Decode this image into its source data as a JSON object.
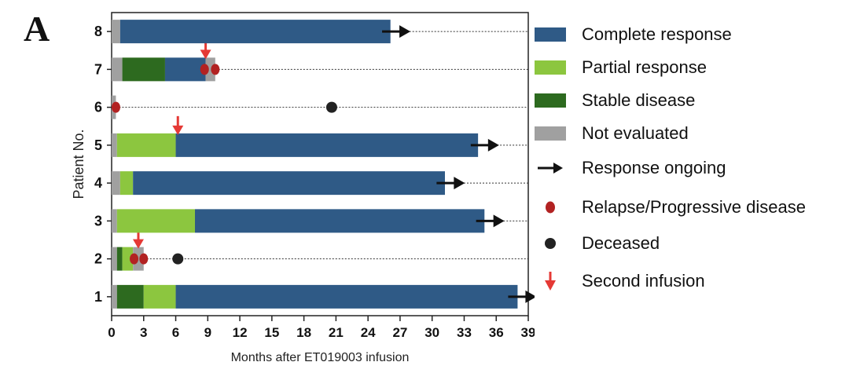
{
  "panel_label": "A",
  "colors": {
    "complete": "#2f5a86",
    "partial": "#8cc63f",
    "stable": "#2d6a1f",
    "not_evaluated": "#a0a0a0",
    "relapse": "#b22222",
    "deceased": "#222222",
    "arrow": "#111111",
    "infusion": "#e53935"
  },
  "legend": [
    {
      "key": "complete",
      "label": "Complete response",
      "kind": "swatch",
      "icon": "complete-swatch"
    },
    {
      "key": "partial",
      "label": "Partial response",
      "kind": "swatch",
      "icon": "partial-swatch"
    },
    {
      "key": "stable",
      "label": "Stable disease",
      "kind": "swatch",
      "icon": "stable-swatch"
    },
    {
      "key": "not_evaluated",
      "label": "Not evaluated",
      "kind": "swatch",
      "icon": "not-evaluated-swatch"
    },
    {
      "key": "arrow",
      "label": "Response ongoing",
      "kind": "arrow",
      "icon": "right-arrow-icon"
    },
    {
      "key": "relapse",
      "label": "Relapse/Progressive disease",
      "kind": "dot-red",
      "icon": "red-dot-icon"
    },
    {
      "key": "deceased",
      "label": "Deceased",
      "kind": "dot-black",
      "icon": "black-dot-icon"
    },
    {
      "key": "infusion",
      "label": "Second infusion",
      "kind": "down-arrow",
      "icon": "down-arrow-icon"
    }
  ],
  "chart_data": {
    "type": "bar",
    "orientation": "horizontal",
    "xlabel": "Months after ET019003 infusion",
    "ylabel": "Patient No.",
    "xlim": [
      0,
      39
    ],
    "xticks": [
      0,
      3,
      6,
      9,
      12,
      15,
      18,
      21,
      24,
      27,
      30,
      33,
      36,
      39
    ],
    "patients": [
      {
        "id": "1",
        "segments": [
          {
            "status": "not_evaluated",
            "start": 0,
            "end": 0.5
          },
          {
            "status": "stable",
            "start": 0.5,
            "end": 3
          },
          {
            "status": "partial",
            "start": 3,
            "end": 6
          },
          {
            "status": "complete",
            "start": 6,
            "end": 38
          }
        ],
        "ongoing_arrow": 38,
        "relapse": [],
        "deceased": null,
        "second_infusion": null,
        "dashed_to": 38
      },
      {
        "id": "2",
        "segments": [
          {
            "status": "not_evaluated",
            "start": 0,
            "end": 0.5
          },
          {
            "status": "stable",
            "start": 0.5,
            "end": 1
          },
          {
            "status": "partial",
            "start": 1,
            "end": 2
          },
          {
            "status": "not_evaluated",
            "start": 2,
            "end": 3
          }
        ],
        "ongoing_arrow": null,
        "relapse": [
          2.1,
          3.0
        ],
        "deceased": 6.2,
        "second_infusion": 2.5,
        "dashed_to": 39
      },
      {
        "id": "3",
        "segments": [
          {
            "status": "not_evaluated",
            "start": 0,
            "end": 0.5
          },
          {
            "status": "partial",
            "start": 0.5,
            "end": 7.8
          },
          {
            "status": "complete",
            "start": 7.8,
            "end": 34.9
          }
        ],
        "ongoing_arrow": 35,
        "relapse": [],
        "deceased": null,
        "second_infusion": null,
        "dashed_to": 39
      },
      {
        "id": "4",
        "segments": [
          {
            "status": "not_evaluated",
            "start": 0,
            "end": 0.8
          },
          {
            "status": "partial",
            "start": 0.8,
            "end": 2
          },
          {
            "status": "complete",
            "start": 2,
            "end": 31.2
          }
        ],
        "ongoing_arrow": 31.3,
        "relapse": [],
        "deceased": null,
        "second_infusion": null,
        "dashed_to": 39
      },
      {
        "id": "5",
        "segments": [
          {
            "status": "not_evaluated",
            "start": 0,
            "end": 0.5
          },
          {
            "status": "partial",
            "start": 0.5,
            "end": 6
          },
          {
            "status": "complete",
            "start": 6,
            "end": 34.3
          }
        ],
        "ongoing_arrow": 34.5,
        "relapse": [],
        "deceased": null,
        "second_infusion": 6.2,
        "dashed_to": 39
      },
      {
        "id": "6",
        "segments": [
          {
            "status": "not_evaluated",
            "start": 0,
            "end": 0.4
          }
        ],
        "ongoing_arrow": null,
        "relapse": [
          0.4
        ],
        "deceased": 20.6,
        "second_infusion": null,
        "dashed_to": 39
      },
      {
        "id": "7",
        "segments": [
          {
            "status": "not_evaluated",
            "start": 0,
            "end": 1
          },
          {
            "status": "stable",
            "start": 1,
            "end": 5
          },
          {
            "status": "complete",
            "start": 5,
            "end": 8.8
          },
          {
            "status": "not_evaluated",
            "start": 8.8,
            "end": 9.7
          }
        ],
        "ongoing_arrow": null,
        "relapse": [
          8.7,
          9.7
        ],
        "deceased": null,
        "second_infusion": 8.8,
        "dashed_to": 39
      },
      {
        "id": "8",
        "segments": [
          {
            "status": "not_evaluated",
            "start": 0,
            "end": 0.8
          },
          {
            "status": "complete",
            "start": 0.8,
            "end": 26.1
          }
        ],
        "ongoing_arrow": 26.2,
        "relapse": [],
        "deceased": null,
        "second_infusion": null,
        "dashed_to": 39
      }
    ]
  }
}
